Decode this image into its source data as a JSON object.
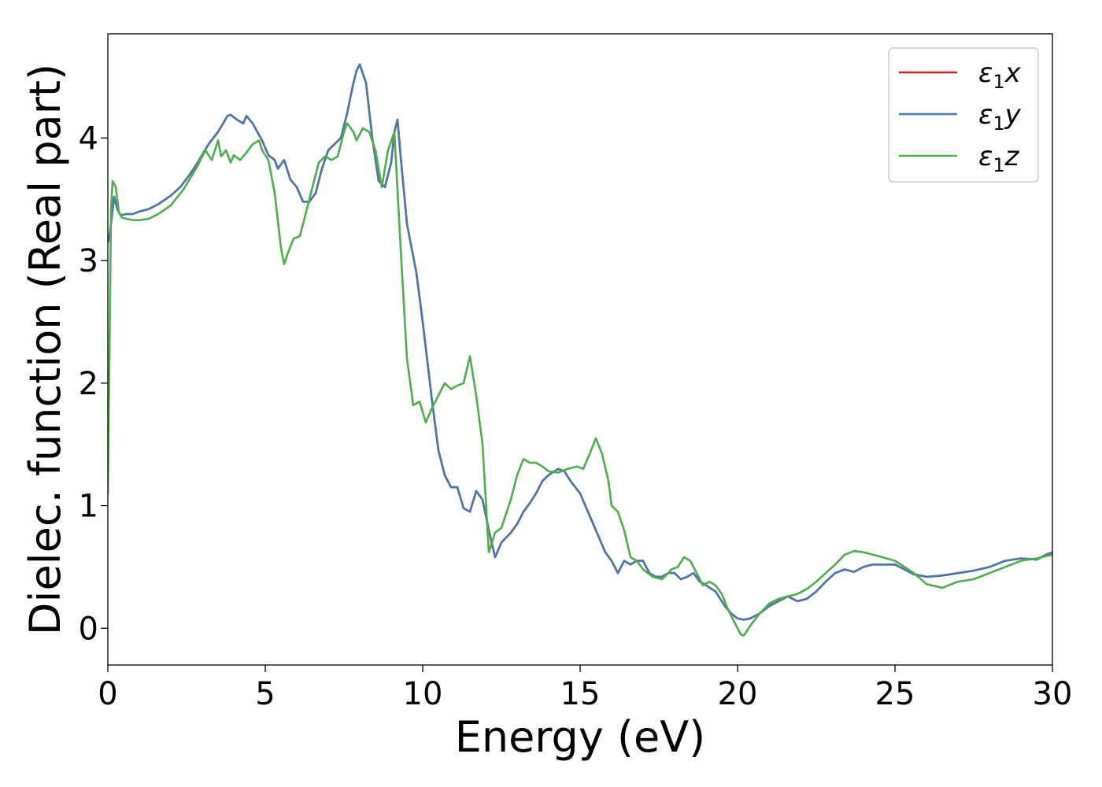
{
  "chart_data": {
    "type": "line",
    "title": "",
    "xlabel": "Energy (eV)",
    "ylabel": "Dielec. function (Real part)",
    "xlim": [
      0,
      30
    ],
    "ylim": [
      -0.3,
      4.85
    ],
    "xticks": [
      0,
      5,
      10,
      15,
      20,
      25,
      30
    ],
    "yticks": [
      0,
      1,
      2,
      3,
      4
    ],
    "grid": false,
    "legend_position": "top-right",
    "series": [
      {
        "name": "ε₁x",
        "label_base": "ε",
        "label_sub": "1",
        "label_tail": "x",
        "color": "#e41a1c",
        "x": [
          0,
          0.05,
          0.1,
          0.2,
          0.3,
          0.4,
          0.6,
          0.8,
          1.0,
          1.3,
          1.6,
          2.0,
          2.3,
          2.6,
          2.9,
          3.2,
          3.5,
          3.8,
          3.9,
          4.1,
          4.3,
          4.4,
          4.6,
          4.9,
          5.1,
          5.3,
          5.4,
          5.6,
          5.8,
          6.0,
          6.2,
          6.4,
          6.6,
          6.8,
          7.0,
          7.2,
          7.4,
          7.6,
          7.8,
          7.9,
          8.0,
          8.2,
          8.4,
          8.6,
          8.8,
          9.0,
          9.1,
          9.2,
          9.3,
          9.5,
          9.8,
          10.0,
          10.3,
          10.5,
          10.7,
          10.9,
          11.1,
          11.3,
          11.5,
          11.7,
          11.9,
          12.1,
          12.3,
          12.5,
          12.8,
          13.0,
          13.2,
          13.4,
          13.6,
          13.8,
          14.0,
          14.3,
          14.5,
          14.7,
          15.0,
          15.2,
          15.5,
          15.8,
          16.0,
          16.2,
          16.4,
          16.6,
          16.8,
          17.0,
          17.2,
          17.4,
          17.6,
          17.8,
          18.0,
          18.2,
          18.4,
          18.6,
          18.8,
          19.0,
          19.3,
          19.6,
          19.8,
          20.0,
          20.2,
          20.4,
          20.7,
          21.0,
          21.3,
          21.6,
          21.9,
          22.2,
          22.5,
          22.8,
          23.1,
          23.4,
          23.7,
          24.0,
          24.3,
          24.6,
          25.0,
          25.3,
          25.6,
          26.0,
          26.5,
          27.0,
          27.5,
          28.0,
          28.5,
          29.0,
          29.5,
          29.8,
          30.0
        ],
        "values": [
          3.15,
          3.2,
          3.3,
          3.52,
          3.42,
          3.37,
          3.38,
          3.38,
          3.4,
          3.42,
          3.46,
          3.53,
          3.6,
          3.7,
          3.82,
          3.95,
          4.05,
          4.18,
          4.19,
          4.15,
          4.12,
          4.18,
          4.12,
          3.98,
          3.86,
          3.82,
          3.75,
          3.82,
          3.66,
          3.6,
          3.48,
          3.48,
          3.55,
          3.75,
          3.9,
          3.95,
          4.0,
          4.2,
          4.45,
          4.55,
          4.6,
          4.45,
          4.0,
          3.65,
          3.6,
          3.8,
          4.05,
          4.15,
          3.85,
          3.3,
          2.9,
          2.5,
          1.85,
          1.45,
          1.25,
          1.15,
          1.15,
          0.98,
          0.95,
          1.12,
          1.05,
          0.8,
          0.58,
          0.7,
          0.78,
          0.85,
          0.95,
          1.02,
          1.1,
          1.2,
          1.25,
          1.3,
          1.28,
          1.2,
          1.1,
          0.98,
          0.8,
          0.62,
          0.55,
          0.45,
          0.55,
          0.52,
          0.55,
          0.55,
          0.45,
          0.42,
          0.42,
          0.45,
          0.45,
          0.4,
          0.42,
          0.45,
          0.38,
          0.35,
          0.3,
          0.18,
          0.12,
          0.08,
          0.07,
          0.08,
          0.12,
          0.18,
          0.22,
          0.26,
          0.22,
          0.24,
          0.3,
          0.38,
          0.45,
          0.48,
          0.46,
          0.5,
          0.52,
          0.52,
          0.52,
          0.48,
          0.44,
          0.42,
          0.43,
          0.45,
          0.47,
          0.5,
          0.55,
          0.57,
          0.56,
          0.6,
          0.62
        ]
      },
      {
        "name": "ε₁y",
        "label_base": "ε",
        "label_sub": "1",
        "label_tail": "y",
        "color": "#4878b0",
        "x": [
          0,
          0.05,
          0.1,
          0.2,
          0.3,
          0.4,
          0.6,
          0.8,
          1.0,
          1.3,
          1.6,
          2.0,
          2.3,
          2.6,
          2.9,
          3.2,
          3.5,
          3.8,
          3.9,
          4.1,
          4.3,
          4.4,
          4.6,
          4.9,
          5.1,
          5.3,
          5.4,
          5.6,
          5.8,
          6.0,
          6.2,
          6.4,
          6.6,
          6.8,
          7.0,
          7.2,
          7.4,
          7.6,
          7.8,
          7.9,
          8.0,
          8.2,
          8.4,
          8.6,
          8.8,
          9.0,
          9.1,
          9.2,
          9.3,
          9.5,
          9.8,
          10.0,
          10.3,
          10.5,
          10.7,
          10.9,
          11.1,
          11.3,
          11.5,
          11.7,
          11.9,
          12.1,
          12.3,
          12.5,
          12.8,
          13.0,
          13.2,
          13.4,
          13.6,
          13.8,
          14.0,
          14.3,
          14.5,
          14.7,
          15.0,
          15.2,
          15.5,
          15.8,
          16.0,
          16.2,
          16.4,
          16.6,
          16.8,
          17.0,
          17.2,
          17.4,
          17.6,
          17.8,
          18.0,
          18.2,
          18.4,
          18.6,
          18.8,
          19.0,
          19.3,
          19.6,
          19.8,
          20.0,
          20.2,
          20.4,
          20.7,
          21.0,
          21.3,
          21.6,
          21.9,
          22.2,
          22.5,
          22.8,
          23.1,
          23.4,
          23.7,
          24.0,
          24.3,
          24.6,
          25.0,
          25.3,
          25.6,
          26.0,
          26.5,
          27.0,
          27.5,
          28.0,
          28.5,
          29.0,
          29.5,
          29.8,
          30.0
        ],
        "values": [
          3.15,
          3.2,
          3.3,
          3.52,
          3.42,
          3.37,
          3.38,
          3.38,
          3.4,
          3.42,
          3.46,
          3.53,
          3.6,
          3.7,
          3.82,
          3.95,
          4.05,
          4.18,
          4.19,
          4.15,
          4.12,
          4.18,
          4.12,
          3.98,
          3.86,
          3.82,
          3.75,
          3.82,
          3.66,
          3.6,
          3.48,
          3.48,
          3.55,
          3.75,
          3.9,
          3.95,
          4.0,
          4.2,
          4.45,
          4.55,
          4.6,
          4.45,
          4.0,
          3.65,
          3.6,
          3.8,
          4.05,
          4.15,
          3.85,
          3.3,
          2.9,
          2.5,
          1.85,
          1.45,
          1.25,
          1.15,
          1.15,
          0.98,
          0.95,
          1.12,
          1.05,
          0.8,
          0.58,
          0.7,
          0.78,
          0.85,
          0.95,
          1.02,
          1.1,
          1.2,
          1.25,
          1.3,
          1.28,
          1.2,
          1.1,
          0.98,
          0.8,
          0.62,
          0.55,
          0.45,
          0.55,
          0.52,
          0.55,
          0.55,
          0.45,
          0.42,
          0.42,
          0.45,
          0.45,
          0.4,
          0.42,
          0.45,
          0.38,
          0.35,
          0.3,
          0.18,
          0.12,
          0.08,
          0.07,
          0.08,
          0.12,
          0.18,
          0.22,
          0.26,
          0.22,
          0.24,
          0.3,
          0.38,
          0.45,
          0.48,
          0.46,
          0.5,
          0.52,
          0.52,
          0.52,
          0.48,
          0.44,
          0.42,
          0.43,
          0.45,
          0.47,
          0.5,
          0.55,
          0.57,
          0.56,
          0.6,
          0.62
        ]
      },
      {
        "name": "ε₁z",
        "label_base": "ε",
        "label_sub": "1",
        "label_tail": "z",
        "color": "#4daf4a",
        "x": [
          0,
          0.05,
          0.1,
          0.15,
          0.25,
          0.35,
          0.45,
          0.6,
          0.8,
          1.0,
          1.3,
          1.6,
          2.0,
          2.4,
          2.8,
          3.1,
          3.3,
          3.5,
          3.6,
          3.75,
          3.9,
          4.0,
          4.2,
          4.4,
          4.6,
          4.8,
          4.9,
          5.1,
          5.3,
          5.5,
          5.6,
          5.7,
          5.9,
          6.1,
          6.3,
          6.5,
          6.7,
          6.9,
          7.1,
          7.3,
          7.5,
          7.6,
          7.8,
          7.9,
          8.1,
          8.3,
          8.5,
          8.7,
          8.9,
          9.1,
          9.3,
          9.5,
          9.7,
          9.9,
          10.1,
          10.3,
          10.5,
          10.7,
          10.9,
          11.1,
          11.3,
          11.5,
          11.7,
          11.9,
          12.1,
          12.3,
          12.5,
          12.8,
          13.0,
          13.2,
          13.4,
          13.6,
          13.8,
          14.0,
          14.3,
          14.6,
          14.9,
          15.1,
          15.3,
          15.5,
          15.7,
          15.9,
          16.0,
          16.2,
          16.4,
          16.6,
          16.8,
          17.0,
          17.3,
          17.6,
          17.8,
          17.9,
          18.1,
          18.3,
          18.5,
          18.7,
          18.9,
          19.1,
          19.3,
          19.5,
          19.7,
          19.9,
          20.1,
          20.2,
          20.4,
          20.7,
          21.0,
          21.3,
          21.6,
          21.9,
          22.2,
          22.5,
          22.8,
          23.1,
          23.4,
          23.7,
          24.0,
          24.3,
          24.6,
          25.0,
          25.3,
          25.6,
          26.0,
          26.5,
          27.0,
          27.5,
          28.0,
          28.5,
          29.0,
          29.5,
          30.0
        ],
        "values": [
          1.1,
          2.2,
          3.4,
          3.65,
          3.6,
          3.4,
          3.35,
          3.34,
          3.33,
          3.33,
          3.34,
          3.38,
          3.45,
          3.58,
          3.75,
          3.9,
          3.82,
          3.98,
          3.85,
          3.9,
          3.8,
          3.86,
          3.82,
          3.88,
          3.95,
          3.98,
          3.9,
          3.82,
          3.55,
          3.1,
          2.97,
          3.05,
          3.18,
          3.2,
          3.4,
          3.6,
          3.8,
          3.85,
          3.82,
          3.85,
          4.05,
          4.12,
          4.05,
          3.98,
          4.08,
          4.05,
          3.9,
          3.6,
          3.9,
          4.05,
          3.1,
          2.2,
          1.82,
          1.85,
          1.68,
          1.8,
          1.9,
          2.0,
          1.95,
          1.98,
          2.0,
          2.22,
          1.9,
          1.5,
          0.62,
          0.78,
          0.82,
          1.05,
          1.25,
          1.38,
          1.35,
          1.35,
          1.32,
          1.28,
          1.27,
          1.3,
          1.32,
          1.3,
          1.42,
          1.55,
          1.42,
          1.2,
          1.0,
          0.95,
          0.8,
          0.58,
          0.55,
          0.48,
          0.42,
          0.4,
          0.45,
          0.48,
          0.5,
          0.58,
          0.55,
          0.45,
          0.35,
          0.38,
          0.35,
          0.28,
          0.15,
          0.05,
          -0.05,
          -0.06,
          0.02,
          0.12,
          0.2,
          0.24,
          0.26,
          0.28,
          0.32,
          0.38,
          0.45,
          0.52,
          0.6,
          0.63,
          0.62,
          0.6,
          0.58,
          0.55,
          0.5,
          0.45,
          0.36,
          0.33,
          0.38,
          0.4,
          0.45,
          0.5,
          0.55,
          0.57,
          0.6
        ]
      }
    ]
  }
}
